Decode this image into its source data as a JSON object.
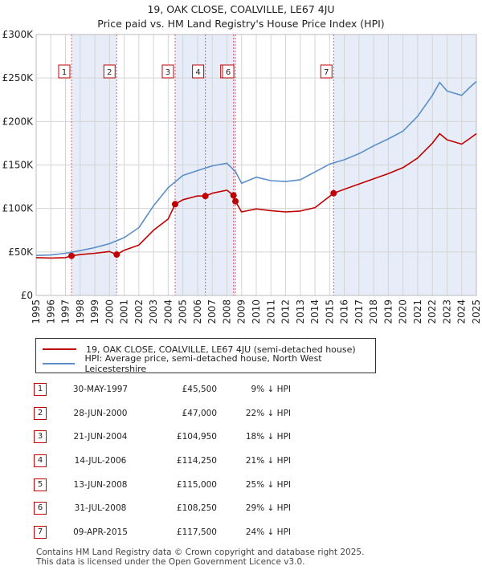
{
  "title_line1": "19, OAK CLOSE, COALVILLE, LE67 4JU",
  "title_line2": "Price paid vs. HM Land Registry's House Price Index (HPI)",
  "chart_data": {
    "type": "line",
    "xlim": [
      1995,
      2025
    ],
    "ylim": [
      0,
      300000
    ],
    "y_ticks": [
      {
        "value": 0,
        "label": "£0"
      },
      {
        "value": 50000,
        "label": "£50K"
      },
      {
        "value": 100000,
        "label": "£100K"
      },
      {
        "value": 150000,
        "label": "£150K"
      },
      {
        "value": 200000,
        "label": "£200K"
      },
      {
        "value": 250000,
        "label": "£250K"
      },
      {
        "value": 300000,
        "label": "£300K"
      }
    ],
    "x_ticks": [
      "1995",
      "1996",
      "1997",
      "1998",
      "1999",
      "2000",
      "2001",
      "2002",
      "2003",
      "2004",
      "2005",
      "2006",
      "2007",
      "2008",
      "2009",
      "2010",
      "2011",
      "2012",
      "2013",
      "2014",
      "2015",
      "2016",
      "2017",
      "2018",
      "2019",
      "2020",
      "2021",
      "2022",
      "2023",
      "2024",
      "2025"
    ],
    "series": [
      {
        "name": "HPI: Average price, semi-detached house, North West Leicestershire",
        "color": "#5b8ec9",
        "points": [
          [
            1995,
            46000
          ],
          [
            1996,
            46500
          ],
          [
            1997,
            48500
          ],
          [
            1998,
            51500
          ],
          [
            1999,
            55000
          ],
          [
            2000,
            59500
          ],
          [
            2001,
            66500
          ],
          [
            2002,
            78000
          ],
          [
            2003,
            103000
          ],
          [
            2004,
            124000
          ],
          [
            2005,
            138000
          ],
          [
            2006,
            143500
          ],
          [
            2007,
            149000
          ],
          [
            2008,
            152000
          ],
          [
            2008.6,
            142000
          ],
          [
            2009,
            129000
          ],
          [
            2010,
            136000
          ],
          [
            2011,
            132000
          ],
          [
            2012,
            131000
          ],
          [
            2013,
            133000
          ],
          [
            2014,
            142000
          ],
          [
            2015,
            151000
          ],
          [
            2016,
            156000
          ],
          [
            2017,
            163000
          ],
          [
            2018,
            172000
          ],
          [
            2019,
            180000
          ],
          [
            2020,
            189000
          ],
          [
            2021,
            206000
          ],
          [
            2022,
            230000
          ],
          [
            2022.5,
            245000
          ],
          [
            2023,
            235000
          ],
          [
            2024,
            230000
          ],
          [
            2024.6,
            240000
          ],
          [
            2025,
            246000
          ]
        ]
      },
      {
        "name": "19, OAK CLOSE, COALVILLE, LE67 4JU (semi-detached house)",
        "color": "#c00000",
        "points": [
          [
            1995,
            43500
          ],
          [
            1996,
            43000
          ],
          [
            1997,
            43500
          ],
          [
            1997.41,
            45500
          ],
          [
            1998,
            47000
          ],
          [
            1999,
            48500
          ],
          [
            2000,
            50500
          ],
          [
            2000.49,
            47000
          ],
          [
            2001,
            52000
          ],
          [
            2002,
            58000
          ],
          [
            2003,
            75000
          ],
          [
            2004,
            88000
          ],
          [
            2004.47,
            104950
          ],
          [
            2005,
            110000
          ],
          [
            2006,
            114500
          ],
          [
            2006.53,
            114250
          ],
          [
            2007,
            117500
          ],
          [
            2008,
            121000
          ],
          [
            2008.45,
            115000
          ],
          [
            2008.58,
            108250
          ],
          [
            2009,
            96000
          ],
          [
            2010,
            99500
          ],
          [
            2011,
            97500
          ],
          [
            2012,
            96000
          ],
          [
            2013,
            97000
          ],
          [
            2014,
            101000
          ],
          [
            2015.27,
            117500
          ],
          [
            2016,
            122000
          ],
          [
            2017,
            128000
          ],
          [
            2018,
            134000
          ],
          [
            2019,
            140000
          ],
          [
            2020,
            147000
          ],
          [
            2021,
            158000
          ],
          [
            2022,
            175000
          ],
          [
            2022.5,
            186000
          ],
          [
            2023,
            179000
          ],
          [
            2024,
            174000
          ],
          [
            2024.6,
            181000
          ],
          [
            2025,
            186000
          ]
        ]
      }
    ],
    "sales": [
      {
        "n": "1",
        "x": 1997.41,
        "y": 45500
      },
      {
        "n": "2",
        "x": 2000.49,
        "y": 47000
      },
      {
        "n": "3",
        "x": 2004.47,
        "y": 104950
      },
      {
        "n": "4",
        "x": 2006.53,
        "y": 114250
      },
      {
        "n": "5",
        "x": 2008.45,
        "y": 115000
      },
      {
        "n": "6",
        "x": 2008.58,
        "y": 108250
      },
      {
        "n": "7",
        "x": 2015.27,
        "y": 117500
      }
    ],
    "shaded_ranges": [
      [
        1997.41,
        2000.49
      ],
      [
        2004.47,
        2008.58
      ],
      [
        2015.27,
        2025
      ]
    ]
  },
  "legend": {
    "property_label": "19, OAK CLOSE, COALVILLE, LE67 4JU (semi-detached house)",
    "hpi_label": "HPI: Average price, semi-detached house, North West Leicestershire"
  },
  "table_rows": [
    {
      "n": "1",
      "date": "30-MAY-1997",
      "price": "£45,500",
      "hpi": "9% ↓ HPI"
    },
    {
      "n": "2",
      "date": "28-JUN-2000",
      "price": "£47,000",
      "hpi": "22% ↓ HPI"
    },
    {
      "n": "3",
      "date": "21-JUN-2004",
      "price": "£104,950",
      "hpi": "18% ↓ HPI"
    },
    {
      "n": "4",
      "date": "14-JUL-2006",
      "price": "£114,250",
      "hpi": "21% ↓ HPI"
    },
    {
      "n": "5",
      "date": "13-JUN-2008",
      "price": "£115,000",
      "hpi": "25% ↓ HPI"
    },
    {
      "n": "6",
      "date": "31-JUL-2008",
      "price": "£108,250",
      "hpi": "29% ↓ HPI"
    },
    {
      "n": "7",
      "date": "09-APR-2015",
      "price": "£117,500",
      "hpi": "24% ↓ HPI"
    }
  ],
  "footer_line1": "Contains HM Land Registry data © Crown copyright and database right 2025.",
  "footer_line2": "This data is licensed under the Open Government Licence v3.0."
}
